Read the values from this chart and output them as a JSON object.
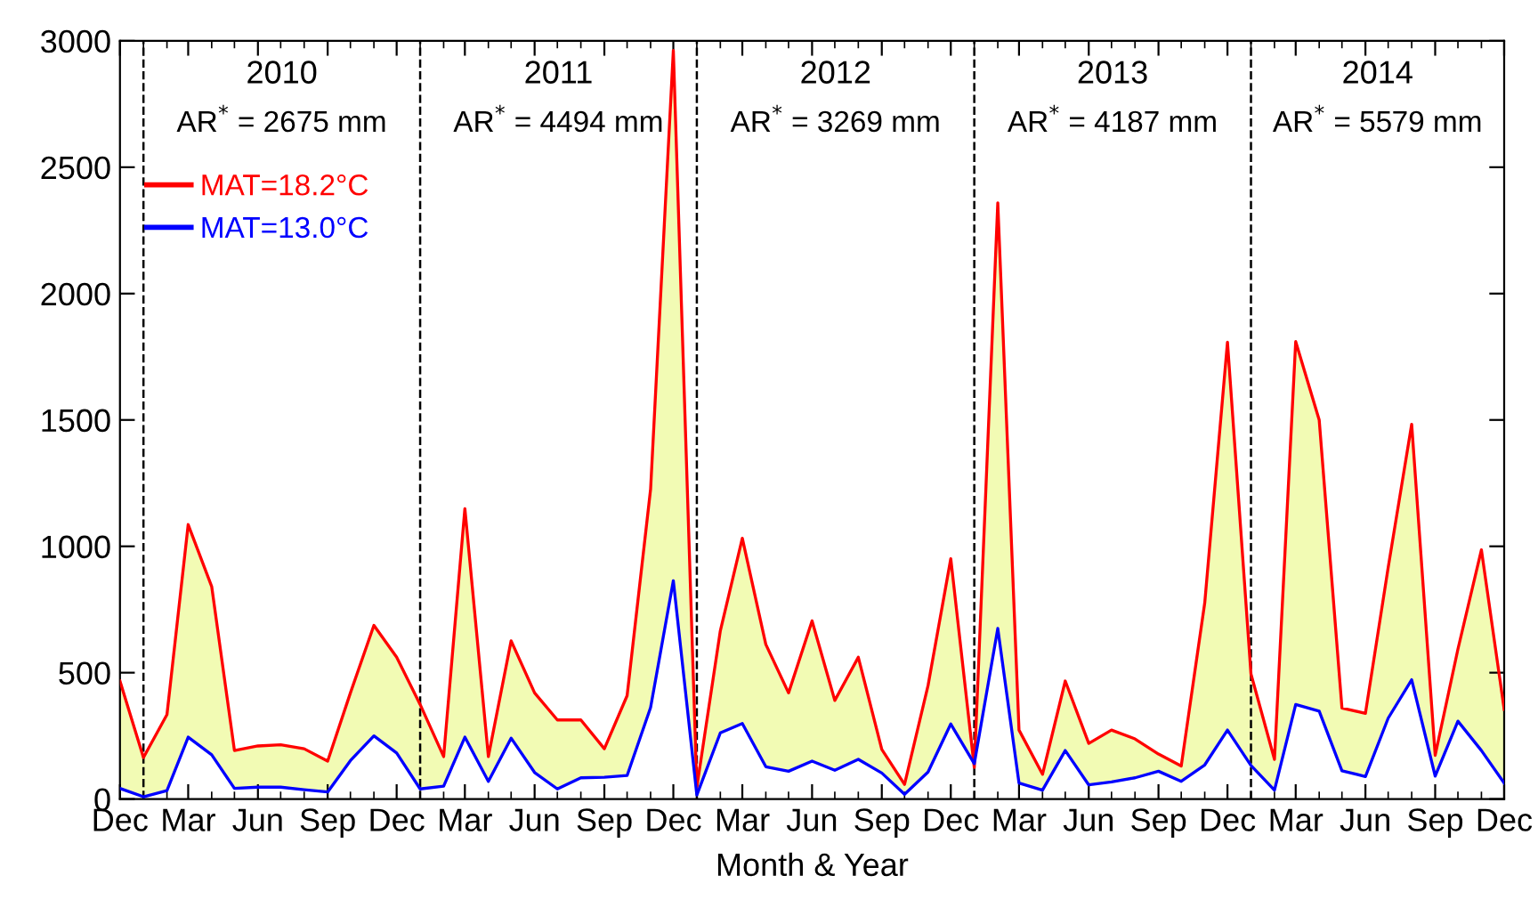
{
  "chart_data": {
    "type": "line",
    "xlabel": "Month & Year",
    "x": [
      "2009-12",
      "2010-01",
      "2010-02",
      "2010-03",
      "2010-04",
      "2010-05",
      "2010-06",
      "2010-07",
      "2010-08",
      "2010-09",
      "2010-10",
      "2010-11",
      "2010-12",
      "2011-01",
      "2011-02",
      "2011-03",
      "2011-04",
      "2011-05",
      "2011-06",
      "2011-07",
      "2011-08",
      "2011-09",
      "2011-10",
      "2011-11",
      "2011-12",
      "2012-01",
      "2012-02",
      "2012-03",
      "2012-04",
      "2012-05",
      "2012-06",
      "2012-07",
      "2012-08",
      "2012-09",
      "2012-10",
      "2012-11",
      "2012-12",
      "2013-01",
      "2013-02",
      "2013-03",
      "2013-04",
      "2013-05",
      "2013-06",
      "2013-07",
      "2013-08",
      "2013-09",
      "2013-10",
      "2013-11",
      "2013-12",
      "2014-01",
      "2014-02",
      "2014-03",
      "2014-04",
      "2014-05",
      "2014-06",
      "2014-07",
      "2014-08",
      "2014-09",
      "2014-10",
      "2014-11",
      "2014-12"
    ],
    "series": [
      {
        "name": "MAT=18.2°C",
        "type": "area",
        "color": "#ff0000",
        "values": [
          467,
          164,
          334,
          1086,
          841,
          192,
          210,
          215,
          199,
          150,
          420,
          687,
          561,
          374,
          168,
          1149,
          168,
          626,
          420,
          313,
          313,
          199,
          409,
          1226,
          2962,
          47,
          666,
          1032,
          612,
          420,
          705,
          390,
          561,
          196,
          58,
          449,
          951,
          125,
          2359,
          273,
          98,
          467,
          220,
          273,
          238,
          178,
          131,
          776,
          1808,
          495,
          157,
          1810,
          1500,
          360,
          339,
          916,
          1483,
          173,
          593,
          986,
          355
        ]
      },
      {
        "name": "MAT=13.0°C",
        "color": "#0000ff",
        "values": [
          42,
          9,
          33,
          245,
          175,
          42,
          47,
          47,
          37,
          28,
          152,
          250,
          182,
          40,
          51,
          245,
          70,
          241,
          105,
          40,
          84,
          86,
          93,
          362,
          864,
          16,
          262,
          299,
          128,
          110,
          150,
          114,
          157,
          103,
          19,
          107,
          297,
          140,
          675,
          63,
          35,
          192,
          56,
          68,
          84,
          110,
          70,
          135,
          273,
          133,
          35,
          374,
          348,
          112,
          89,
          320,
          472,
          91,
          308,
          192,
          63
        ]
      }
    ],
    "xlim": [
      "2009-12",
      "2014-12"
    ],
    "ylim": [
      0,
      3000
    ],
    "yticks": [
      0,
      500,
      1000,
      1500,
      2000,
      2500,
      3000
    ],
    "xticks": [
      {
        "value": "2009-12",
        "label": "Dec"
      },
      {
        "value": "2010-01",
        "label": null
      },
      {
        "value": "2010-02",
        "label": null
      },
      {
        "value": "2010-03",
        "label": "Mar"
      },
      {
        "value": "2010-04",
        "label": null
      },
      {
        "value": "2010-05",
        "label": null
      },
      {
        "value": "2010-06",
        "label": "Jun"
      },
      {
        "value": "2010-07",
        "label": null
      },
      {
        "value": "2010-08",
        "label": null
      },
      {
        "value": "2010-09",
        "label": "Sep"
      },
      {
        "value": "2010-10",
        "label": null
      },
      {
        "value": "2010-11",
        "label": null
      },
      {
        "value": "2010-12",
        "label": "Dec"
      },
      {
        "value": "2011-01",
        "label": null
      },
      {
        "value": "2011-02",
        "label": null
      },
      {
        "value": "2011-03",
        "label": "Mar"
      },
      {
        "value": "2011-04",
        "label": null
      },
      {
        "value": "2011-05",
        "label": null
      },
      {
        "value": "2011-06",
        "label": "Jun"
      },
      {
        "value": "2011-07",
        "label": null
      },
      {
        "value": "2011-08",
        "label": null
      },
      {
        "value": "2011-09",
        "label": "Sep"
      },
      {
        "value": "2011-10",
        "label": null
      },
      {
        "value": "2011-11",
        "label": null
      },
      {
        "value": "2011-12",
        "label": "Dec"
      },
      {
        "value": "2012-01",
        "label": null
      },
      {
        "value": "2012-02",
        "label": null
      },
      {
        "value": "2012-03",
        "label": "Mar"
      },
      {
        "value": "2012-04",
        "label": null
      },
      {
        "value": "2012-05",
        "label": null
      },
      {
        "value": "2012-06",
        "label": "Jun"
      },
      {
        "value": "2012-07",
        "label": null
      },
      {
        "value": "2012-08",
        "label": null
      },
      {
        "value": "2012-09",
        "label": "Sep"
      },
      {
        "value": "2012-10",
        "label": null
      },
      {
        "value": "2012-11",
        "label": null
      },
      {
        "value": "2012-12",
        "label": "Dec"
      },
      {
        "value": "2013-01",
        "label": null
      },
      {
        "value": "2013-02",
        "label": null
      },
      {
        "value": "2013-03",
        "label": "Mar"
      },
      {
        "value": "2013-04",
        "label": null
      },
      {
        "value": "2013-05",
        "label": null
      },
      {
        "value": "2013-06",
        "label": "Jun"
      },
      {
        "value": "2013-07",
        "label": null
      },
      {
        "value": "2013-08",
        "label": null
      },
      {
        "value": "2013-09",
        "label": "Sep"
      },
      {
        "value": "2013-10",
        "label": null
      },
      {
        "value": "2013-11",
        "label": null
      },
      {
        "value": "2013-12",
        "label": "Dec"
      },
      {
        "value": "2014-01",
        "label": null
      },
      {
        "value": "2014-02",
        "label": null
      },
      {
        "value": "2014-03",
        "label": "Mar"
      },
      {
        "value": "2014-04",
        "label": null
      },
      {
        "value": "2014-05",
        "label": null
      },
      {
        "value": "2014-06",
        "label": "Jun"
      },
      {
        "value": "2014-07",
        "label": null
      },
      {
        "value": "2014-08",
        "label": null
      },
      {
        "value": "2014-09",
        "label": "Sep"
      },
      {
        "value": "2014-10",
        "label": null
      },
      {
        "value": "2014-11",
        "label": null
      },
      {
        "value": "2014-12",
        "label": "Dec"
      }
    ],
    "ref_lines": [
      {
        "axis": "x",
        "value": "2010-01",
        "color": "#000000",
        "line_style": "dashed"
      },
      {
        "axis": "x",
        "value": "2011-01",
        "color": "#000000",
        "line_style": "dashed"
      },
      {
        "axis": "x",
        "value": "2012-01",
        "color": "#000000",
        "line_style": "dashed"
      },
      {
        "axis": "x",
        "value": "2013-01",
        "color": "#000000",
        "line_style": "dashed"
      },
      {
        "axis": "x",
        "value": "2014-01",
        "color": "#000000",
        "line_style": "dashed"
      }
    ],
    "annotations": [
      "2010",
      "AR$^{*}$ = 2675 mm",
      "2011",
      "AR$^{*}$ = 4494 mm",
      "2012",
      "AR$^{*}$ = 3269 mm",
      "2013",
      "AR$^{*}$ = 4187 mm",
      "2014",
      "AR$^{*}$ = 5579 mm"
    ],
    "legend": "top left",
    "marker": "none",
    "line_style": "solid"
  }
}
